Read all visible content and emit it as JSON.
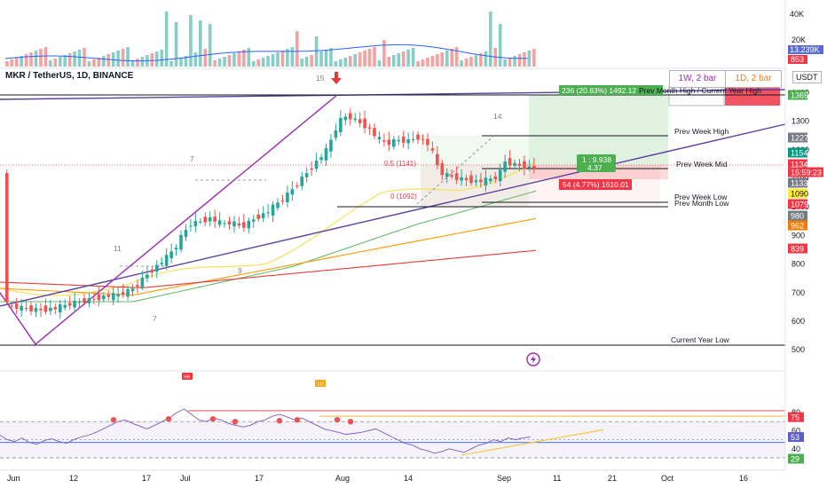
{
  "header": {
    "symbol": "MKR / TetherUS, 1D, BINANCE"
  },
  "currency": "USDT",
  "timeframes": [
    {
      "label": "1W, 2 bar",
      "color": "#9c27b0"
    },
    {
      "label": "1D, 2 bar",
      "color": "#f57c00"
    }
  ],
  "volume_axis": {
    "labels": [
      "40K",
      "20K"
    ],
    "current": "13.239K",
    "avg": "853"
  },
  "price_axis": {
    "ticks": [
      "1400",
      "1300",
      "1200",
      "1100",
      "1000",
      "900",
      "800",
      "700",
      "600",
      "500"
    ],
    "badges": [
      {
        "text": "1369",
        "bg": "#4caf50",
        "fg": "#ffffff"
      },
      {
        "text": "1227",
        "bg": "#787b86",
        "fg": "#ffffff"
      },
      {
        "text": "1154",
        "bg": "#089981",
        "fg": "#ffffff"
      },
      {
        "text": "1134",
        "bg": "#f23645",
        "fg": "#ffffff"
      },
      {
        "text": "15:59:23",
        "bg": "#f23645",
        "fg": "#ffffff"
      },
      {
        "text": "1133",
        "bg": "#787b86",
        "fg": "#ffffff"
      },
      {
        "text": "1090",
        "bg": "#ffeb3b",
        "fg": "#131722"
      },
      {
        "text": "1079",
        "bg": "#f23645",
        "fg": "#ffffff"
      },
      {
        "text": "980",
        "bg": "#787b86",
        "fg": "#ffffff"
      },
      {
        "text": "962",
        "bg": "#f57c00",
        "fg": "#ffffff"
      },
      {
        "text": "839",
        "bg": "#f23645",
        "fg": "#ffffff"
      }
    ]
  },
  "time_axis": [
    "Jun",
    "12",
    "17",
    "Jul",
    "17",
    "Aug",
    "14",
    "Sep",
    "11",
    "21",
    "Oct",
    "16"
  ],
  "levels": {
    "prev_month_high": "Prev Month High / Current Year High",
    "prev_week_high": "Prev Week High",
    "prev_week_mid": "Prev Week Mid",
    "prev_week_low": "Prev Week Low",
    "prev_month_low": "Prev Month Low",
    "current_year_low": "Current Year Low"
  },
  "annotations": {
    "long_target": "236 (20.83%) 1492.12",
    "short_stop": "54 (4.77%) 1610.01",
    "ratio_line1": "1 : 9.938",
    "ratio_line2": "4.37",
    "fib_05": "0.5 (1141)",
    "fib_0": "0 (1092)",
    "swing_15": "15",
    "swing_14": "14",
    "swing_7a": "7",
    "swing_11": "11",
    "swing_9": "9",
    "swing_7b": "7"
  },
  "rsi": {
    "ticks": [
      "80",
      "60",
      "40"
    ],
    "badges": [
      {
        "text": "75",
        "bg": "#f23645",
        "fg": "#ffffff"
      },
      {
        "text": "53",
        "bg": "#5b5fc7",
        "fg": "#ffffff"
      },
      {
        "text": "29",
        "bg": "#4caf50",
        "fg": "#ffffff"
      }
    ],
    "markers": [
      "HH",
      "LH"
    ]
  },
  "colors": {
    "bull": "#26a69a",
    "bear": "#ef5350",
    "trend": "#5b3fa0",
    "ma_fast": "#f5e15b",
    "ma_mid": "#66bb6a",
    "ma_slow": "#ff9800",
    "ma_long": "#e53935"
  }
}
